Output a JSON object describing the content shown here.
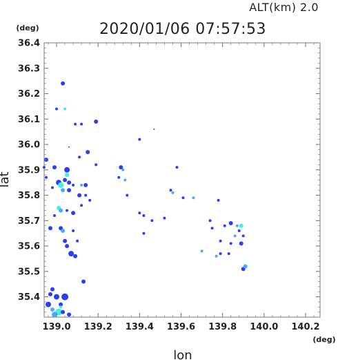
{
  "header": {
    "altitude_label": "ALT(km)  2.0",
    "timestamp": "2020/01/06 07:57:53"
  },
  "chart_data": {
    "type": "scatter",
    "title": "2020/01/06 07:57:53",
    "xlabel": "lon",
    "ylabel": "lat",
    "x_unit": "(deg)",
    "y_unit": "(deg)",
    "xlim": [
      138.94,
      140.27
    ],
    "ylim": [
      35.32,
      36.4
    ],
    "x_ticks": [
      139.0,
      139.2,
      139.4,
      139.6,
      139.8,
      140.0,
      140.2
    ],
    "x_tick_labels": [
      "139.0",
      "139.2",
      "139.4",
      "139.6",
      "139.8",
      "140.0",
      "140.2"
    ],
    "y_ticks": [
      35.4,
      35.5,
      35.6,
      35.7,
      35.8,
      35.9,
      36.0,
      36.1,
      36.2,
      36.3,
      36.4
    ],
    "y_tick_labels": [
      "35.4",
      "35.5",
      "35.6",
      "35.7",
      "35.8",
      "35.9",
      "36.0",
      "36.1",
      "36.2",
      "36.3",
      "36.4"
    ],
    "grid": false,
    "colors": {
      "strong": "#2a3ff0",
      "mid": "#4aa8ff",
      "weak": "#40f0e0"
    },
    "points": [
      [
        139.03,
        36.24,
        3,
        "strong"
      ],
      [
        139.0,
        36.14,
        2,
        "strong"
      ],
      [
        139.04,
        36.14,
        2,
        "weak"
      ],
      [
        139.09,
        36.08,
        2,
        "strong"
      ],
      [
        139.12,
        36.08,
        2,
        "strong"
      ],
      [
        139.19,
        36.09,
        3,
        "strong"
      ],
      [
        139.47,
        36.06,
        1,
        "strong"
      ],
      [
        139.4,
        36.02,
        2,
        "strong"
      ],
      [
        139.06,
        35.99,
        1,
        "strong"
      ],
      [
        139.15,
        35.97,
        3,
        "strong"
      ],
      [
        139.11,
        35.95,
        2,
        "strong"
      ],
      [
        138.95,
        35.94,
        3,
        "strong"
      ],
      [
        138.94,
        35.91,
        2,
        "strong"
      ],
      [
        138.99,
        35.91,
        3,
        "strong"
      ],
      [
        139.05,
        35.9,
        4,
        "strong"
      ],
      [
        139.05,
        35.88,
        3,
        "weak"
      ],
      [
        139.19,
        35.92,
        2,
        "strong"
      ],
      [
        139.31,
        35.91,
        3,
        "strong"
      ],
      [
        139.32,
        35.9,
        2,
        "mid"
      ],
      [
        139.58,
        35.91,
        2,
        "strong"
      ],
      [
        138.95,
        35.87,
        2,
        "strong"
      ],
      [
        139.04,
        35.86,
        3,
        "strong"
      ],
      [
        139.01,
        35.85,
        4,
        "strong"
      ],
      [
        139.02,
        35.84,
        4,
        "weak"
      ],
      [
        139.03,
        35.82,
        3,
        "mid"
      ],
      [
        139.06,
        35.85,
        3,
        "strong"
      ],
      [
        139.08,
        35.84,
        2,
        "strong"
      ],
      [
        139.12,
        35.84,
        2,
        "mid"
      ],
      [
        139.14,
        35.84,
        3,
        "strong"
      ],
      [
        139.3,
        35.87,
        2,
        "strong"
      ],
      [
        139.33,
        35.86,
        2,
        "mid"
      ],
      [
        139.55,
        35.82,
        2,
        "strong"
      ],
      [
        139.56,
        35.81,
        2,
        "mid"
      ],
      [
        138.98,
        35.83,
        2,
        "strong"
      ],
      [
        139.06,
        35.82,
        3,
        "strong"
      ],
      [
        139.11,
        35.8,
        3,
        "strong"
      ],
      [
        139.14,
        35.8,
        2,
        "strong"
      ],
      [
        139.16,
        35.78,
        2,
        "strong"
      ],
      [
        139.34,
        35.8,
        2,
        "strong"
      ],
      [
        139.61,
        35.79,
        2,
        "strong"
      ],
      [
        139.66,
        35.79,
        2,
        "mid"
      ],
      [
        139.78,
        35.78,
        2,
        "strong"
      ],
      [
        139.01,
        35.75,
        3,
        "weak"
      ],
      [
        139.02,
        35.74,
        3,
        "mid"
      ],
      [
        139.05,
        35.74,
        2,
        "strong"
      ],
      [
        139.08,
        35.73,
        3,
        "strong"
      ],
      [
        139.12,
        35.76,
        2,
        "strong"
      ],
      [
        139.4,
        35.73,
        2,
        "strong"
      ],
      [
        139.42,
        35.72,
        2,
        "strong"
      ],
      [
        138.99,
        35.72,
        2,
        "strong"
      ],
      [
        139.46,
        35.7,
        2,
        "strong"
      ],
      [
        139.52,
        35.71,
        2,
        "strong"
      ],
      [
        139.74,
        35.7,
        2,
        "strong"
      ],
      [
        138.97,
        35.67,
        3,
        "strong"
      ],
      [
        139.02,
        35.67,
        3,
        "strong"
      ],
      [
        139.03,
        35.66,
        3,
        "mid"
      ],
      [
        139.08,
        35.66,
        2,
        "strong"
      ],
      [
        139.42,
        35.65,
        2,
        "strong"
      ],
      [
        139.81,
        35.68,
        2,
        "strong"
      ],
      [
        139.84,
        35.69,
        3,
        "strong"
      ],
      [
        139.87,
        35.68,
        2,
        "mid"
      ],
      [
        139.89,
        35.68,
        3,
        "weak"
      ],
      [
        139.75,
        35.67,
        2,
        "strong"
      ],
      [
        139.88,
        35.66,
        2,
        "strong"
      ],
      [
        139.86,
        35.64,
        2,
        "mid"
      ],
      [
        139.9,
        35.64,
        2,
        "strong"
      ],
      [
        139.04,
        35.62,
        3,
        "strong"
      ],
      [
        139.05,
        35.6,
        3,
        "strong"
      ],
      [
        139.1,
        35.62,
        2,
        "strong"
      ],
      [
        139.79,
        35.62,
        2,
        "strong"
      ],
      [
        139.84,
        35.61,
        2,
        "strong"
      ],
      [
        139.89,
        35.61,
        3,
        "strong"
      ],
      [
        139.07,
        35.57,
        4,
        "strong"
      ],
      [
        139.09,
        35.56,
        3,
        "strong"
      ],
      [
        139.7,
        35.58,
        2,
        "mid"
      ],
      [
        139.79,
        35.57,
        2,
        "strong"
      ],
      [
        139.83,
        35.57,
        2,
        "strong"
      ],
      [
        139.77,
        35.56,
        2,
        "mid"
      ],
      [
        139.9,
        35.51,
        3,
        "strong"
      ],
      [
        139.91,
        35.52,
        3,
        "mid"
      ],
      [
        139.13,
        35.46,
        3,
        "strong"
      ],
      [
        138.98,
        35.43,
        3,
        "strong"
      ],
      [
        138.97,
        35.41,
        3,
        "strong"
      ],
      [
        139.0,
        35.4,
        4,
        "strong"
      ],
      [
        139.04,
        35.4,
        5,
        "strong"
      ],
      [
        139.02,
        35.37,
        3,
        "strong"
      ],
      [
        138.96,
        35.37,
        4,
        "strong"
      ],
      [
        138.98,
        35.35,
        3,
        "mid"
      ],
      [
        139.01,
        35.34,
        5,
        "weak"
      ],
      [
        138.99,
        35.33,
        4,
        "mid"
      ],
      [
        139.03,
        35.34,
        3,
        "strong"
      ],
      [
        139.06,
        35.33,
        3,
        "strong"
      ],
      [
        139.02,
        35.36,
        2,
        "weak"
      ]
    ]
  }
}
